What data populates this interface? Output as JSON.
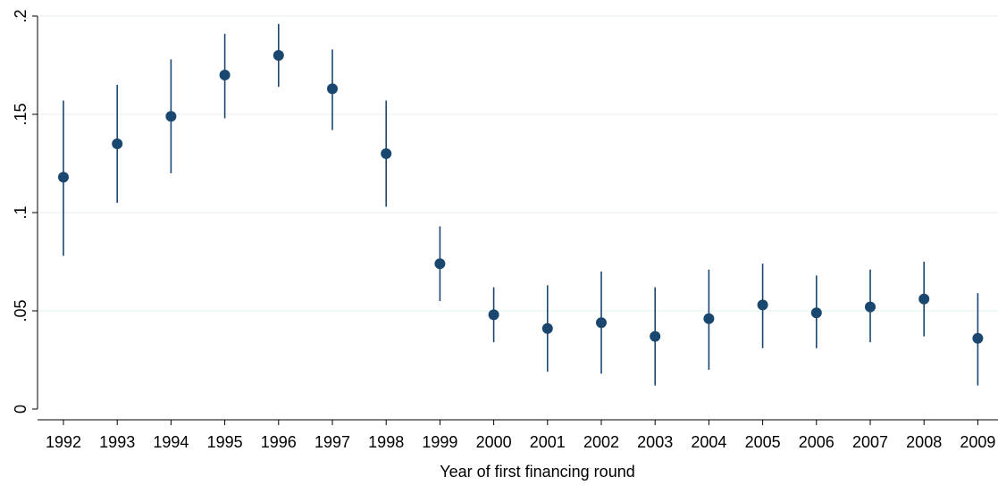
{
  "chart_data": {
    "type": "scatter",
    "subtype": "point-estimate-with-error-bars",
    "title": "",
    "xlabel": "Year of first financing round",
    "ylabel": "",
    "x": [
      "1992",
      "1993",
      "1994",
      "1995",
      "1996",
      "1997",
      "1998",
      "1999",
      "2000",
      "2001",
      "2002",
      "2003",
      "2004",
      "2005",
      "2006",
      "2007",
      "2008",
      "2009"
    ],
    "series": [
      {
        "y": [
          0.118,
          0.135,
          0.149,
          0.17,
          0.18,
          0.163,
          0.13,
          0.074,
          0.048,
          0.041,
          0.044,
          0.037,
          0.046,
          0.053,
          0.049,
          0.052,
          0.056,
          0.036
        ],
        "lower": [
          0.078,
          0.105,
          0.12,
          0.148,
          0.164,
          0.142,
          0.103,
          0.055,
          0.034,
          0.019,
          0.018,
          0.012,
          0.02,
          0.031,
          0.031,
          0.034,
          0.037,
          0.012
        ],
        "upper": [
          0.157,
          0.165,
          0.178,
          0.191,
          0.196,
          0.183,
          0.157,
          0.093,
          0.062,
          0.063,
          0.07,
          0.062,
          0.071,
          0.074,
          0.068,
          0.071,
          0.075,
          0.059
        ]
      }
    ],
    "yticks": [
      {
        "value": 0,
        "label": "0"
      },
      {
        "value": 0.05,
        "label": ".05"
      },
      {
        "value": 0.1,
        "label": ".1"
      },
      {
        "value": 0.15,
        "label": ".15"
      },
      {
        "value": 0.2,
        "label": ".2"
      }
    ],
    "ylim": [
      0,
      0.2
    ],
    "grid": "horizontal",
    "colors": {
      "marker": "#1a476f",
      "errorbar": "#1a476f",
      "grid": "#eaf2f3",
      "axis": "#000000"
    }
  }
}
